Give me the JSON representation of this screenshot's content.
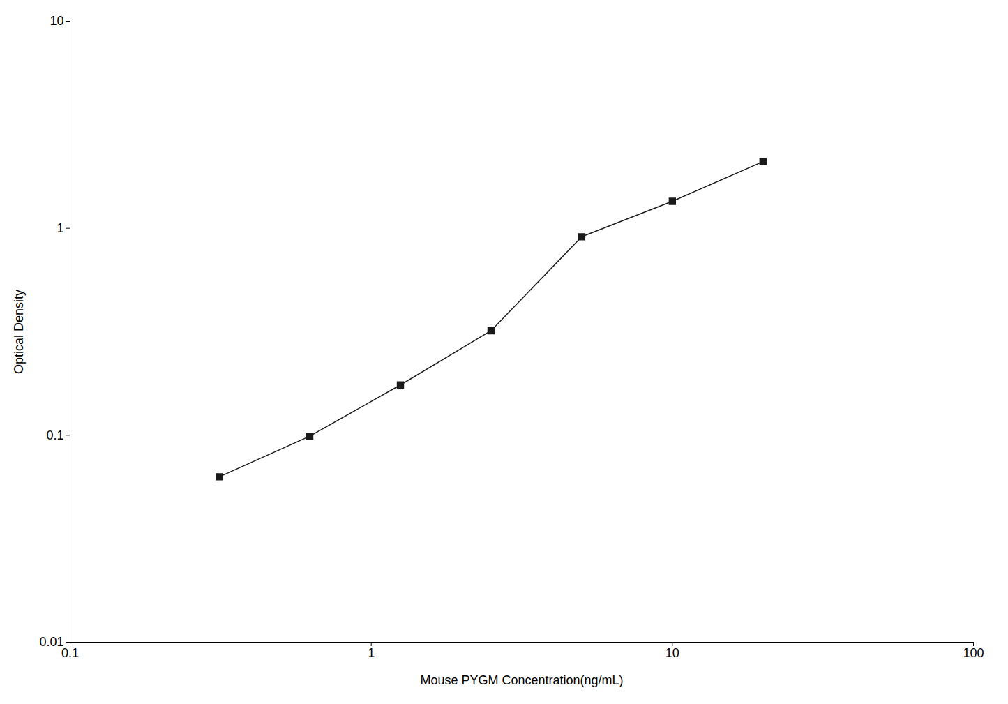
{
  "chart_data": {
    "type": "line",
    "x": [
      0.313,
      0.625,
      1.25,
      2.5,
      5,
      10,
      20
    ],
    "values": [
      0.063,
      0.099,
      0.175,
      0.32,
      0.91,
      1.35,
      2.1
    ],
    "xlabel": "Mouse PYGM Concentration(ng/mL)",
    "ylabel": "Optical Density",
    "xlim": [
      0.1,
      100
    ],
    "ylim": [
      0.01,
      10
    ],
    "xticks": [
      0.1,
      1,
      10,
      100
    ],
    "yticks": [
      0.01,
      0.1,
      1,
      10
    ],
    "log": true,
    "grid": false,
    "color": "#1a1a1a",
    "marker": "square"
  }
}
